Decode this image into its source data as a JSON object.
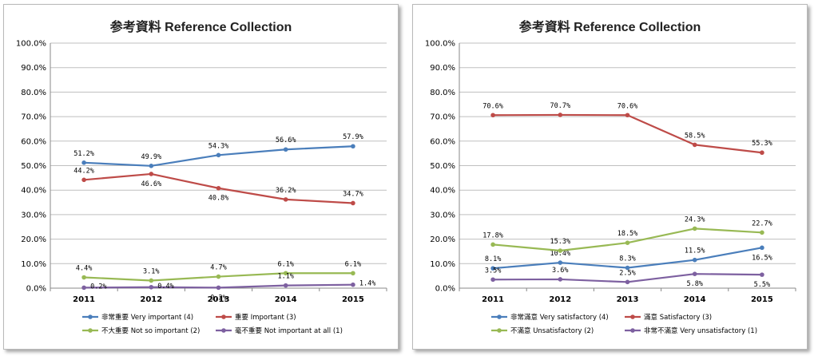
{
  "colors": {
    "blue": "#4a7ebb",
    "red": "#be4b48",
    "green": "#98b954",
    "purple": "#7d60a0",
    "grid": "#bfbfbf",
    "axis": "#888888"
  },
  "chart_data": [
    {
      "type": "line",
      "title": "参考資料  Reference Collection",
      "x": [
        "2011",
        "2012",
        "2013",
        "2014",
        "2015"
      ],
      "ylim": [
        0,
        100
      ],
      "yticks": [
        "0.0%",
        "10.0%",
        "20.0%",
        "30.0%",
        "40.0%",
        "50.0%",
        "60.0%",
        "70.0%",
        "80.0%",
        "90.0%",
        "100.0%"
      ],
      "grid": true,
      "legend_position": "bottom",
      "series": [
        {
          "name": "非常重要 Very important (4)",
          "color": "#4a7ebb",
          "values": [
            51.2,
            49.9,
            54.3,
            56.6,
            57.9
          ],
          "labels": [
            "51.2%",
            "49.9%",
            "54.3%",
            "56.6%",
            "57.9%"
          ],
          "label_pos": [
            "above",
            "above",
            "above",
            "above",
            "above"
          ]
        },
        {
          "name": "重要 Important (3)",
          "color": "#be4b48",
          "values": [
            44.2,
            46.6,
            40.8,
            36.2,
            34.7
          ],
          "labels": [
            "44.2%",
            "46.6%",
            "40.8%",
            "36.2%",
            "34.7%"
          ],
          "label_pos": [
            "above",
            "below",
            "below",
            "above",
            "above"
          ]
        },
        {
          "name": "不大重要 Not so important (2)",
          "color": "#98b954",
          "values": [
            4.4,
            3.1,
            4.7,
            6.1,
            6.1
          ],
          "labels": [
            "4.4%",
            "3.1%",
            "4.7%",
            "6.1%",
            "6.1%"
          ],
          "label_pos": [
            "above",
            "above",
            "above",
            "above",
            "above"
          ]
        },
        {
          "name": "毫不重要 Not important at all (1)",
          "color": "#7d60a0",
          "values": [
            0.2,
            0.4,
            0.2,
            1.1,
            1.4
          ],
          "labels": [
            "0.2%",
            "0.4%",
            "0.2%",
            "1.1%",
            "1.4%"
          ],
          "label_pos": [
            "right",
            "right",
            "below",
            "above",
            "right"
          ]
        }
      ]
    },
    {
      "type": "line",
      "title": "参考資料  Reference Collection",
      "x": [
        "2011",
        "2012",
        "2013",
        "2014",
        "2015"
      ],
      "ylim": [
        0,
        100
      ],
      "yticks": [
        "0.0%",
        "10.0%",
        "20.0%",
        "30.0%",
        "40.0%",
        "50.0%",
        "60.0%",
        "70.0%",
        "80.0%",
        "90.0%",
        "100.0%"
      ],
      "grid": true,
      "legend_position": "bottom",
      "series": [
        {
          "name": "非常滿意 Very satisfactory (4)",
          "color": "#4a7ebb",
          "values": [
            8.1,
            10.4,
            8.3,
            11.5,
            16.5
          ],
          "labels": [
            "8.1%",
            "10.4%",
            "8.3%",
            "11.5%",
            "16.5%"
          ],
          "label_pos": [
            "above",
            "above",
            "above",
            "above",
            "below"
          ]
        },
        {
          "name": "滿意 Satisfactory (3)",
          "color": "#be4b48",
          "values": [
            70.6,
            70.7,
            70.6,
            58.5,
            55.3
          ],
          "labels": [
            "70.6%",
            "70.7%",
            "70.6%",
            "58.5%",
            "55.3%"
          ],
          "label_pos": [
            "above",
            "above",
            "above",
            "above",
            "above"
          ]
        },
        {
          "name": "不滿意 Unsatisfactory (2)",
          "color": "#98b954",
          "values": [
            17.8,
            15.3,
            18.5,
            24.3,
            22.7
          ],
          "labels": [
            "17.8%",
            "15.3%",
            "18.5%",
            "24.3%",
            "22.7%"
          ],
          "label_pos": [
            "above",
            "above",
            "above",
            "above",
            "above"
          ]
        },
        {
          "name": "非常不滿意 Very unsatisfactory (1)",
          "color": "#7d60a0",
          "values": [
            3.5,
            3.6,
            2.5,
            5.8,
            5.5
          ],
          "labels": [
            "3.5%",
            "3.6%",
            "2.5%",
            "5.8%",
            "5.5%"
          ],
          "label_pos": [
            "above",
            "above",
            "above",
            "below",
            "below"
          ]
        }
      ]
    }
  ]
}
